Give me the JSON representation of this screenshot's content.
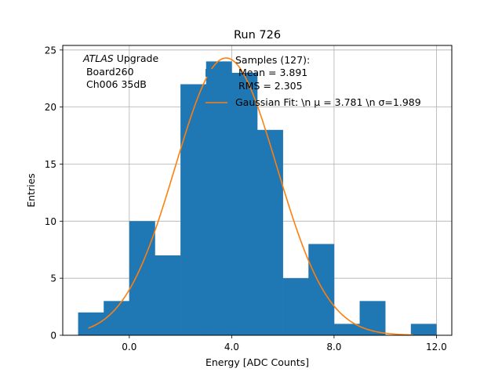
{
  "chart_data": {
    "type": "bar",
    "title": "Run 726",
    "xlabel": "Energy [ADC Counts]",
    "ylabel": "Entries",
    "xlim": [
      -2.6,
      12.6
    ],
    "ylim": [
      0,
      25.4
    ],
    "xticks": [
      0,
      4,
      8,
      12
    ],
    "xtick_labels": [
      "0.0",
      "4.0",
      "8.0",
      "12.0"
    ],
    "yticks": [
      0,
      5,
      10,
      15,
      20,
      25
    ],
    "ytick_labels": [
      "0",
      "5",
      "10",
      "15",
      "20",
      "25"
    ],
    "grid": true,
    "bar_color": "#1f77b4",
    "curve_color": "#ff7f0e",
    "bins": {
      "edges": [
        -2.0,
        -1.0,
        0.0,
        1.0,
        2.0,
        3.0,
        4.0,
        5.0,
        6.0,
        7.0,
        8.0,
        9.0,
        10.0,
        11.0,
        12.0
      ],
      "counts": [
        2,
        3,
        10,
        7,
        22,
        24,
        23,
        18,
        5,
        8,
        1,
        3,
        0,
        1
      ]
    },
    "gaussian_fit": {
      "amplitude": 24.3,
      "mu": 3.781,
      "sigma": 1.989,
      "x_range": [
        -1.6,
        11.1
      ]
    },
    "annotation": {
      "line1_italic": "ATLAS",
      "line1_rest": " Upgrade",
      "line2": " Board260",
      "line3": " Ch006 35dB"
    },
    "legend": {
      "position": "top-right",
      "samples_lines": [
        "Samples (127):",
        " Mean = 3.891",
        " RMS = 2.305"
      ],
      "fit_label": "Gaussian Fit: \\n μ = 3.781 \\n σ=1.989"
    }
  }
}
